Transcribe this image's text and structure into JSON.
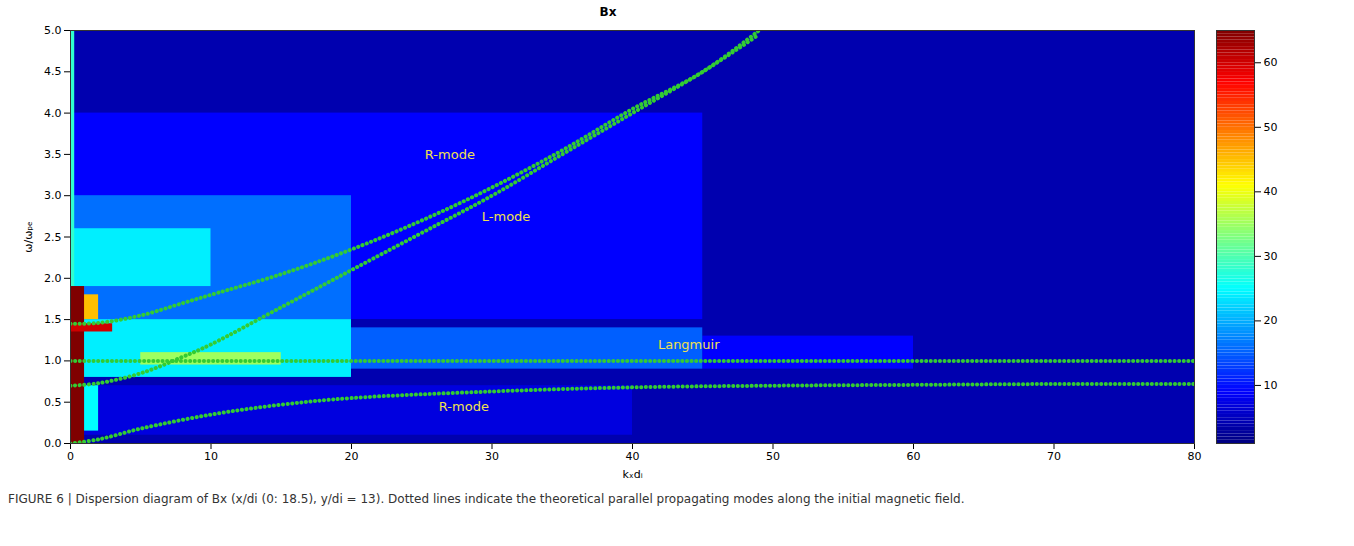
{
  "chart_data": {
    "type": "heatmap",
    "title": "Bx",
    "x_label": "kₓdᵢ",
    "y_label": "ω/ωₚₑ",
    "caption": "FIGURE 6 | Dispersion diagram of Bx (x/di (0: 18.5), y/di = 13). Dotted lines indicate the theoretical parallel propagating modes along the initial magnetic field.",
    "xlim": [
      0,
      80
    ],
    "xticks": [
      0,
      10,
      20,
      30,
      40,
      50,
      60,
      70,
      80
    ],
    "ylim": [
      0,
      5
    ],
    "yticks": [
      0,
      0.5,
      1,
      1.5,
      2,
      2.5,
      3,
      3.5,
      4,
      4.5,
      5
    ],
    "grid": false,
    "colorbar_range": [
      1,
      65
    ],
    "colorbar_ticks": [
      10,
      20,
      30,
      40,
      50,
      60
    ],
    "cells": [
      {
        "x1": 0,
        "x2": 80,
        "y1": 0,
        "y2": 5,
        "value": 4
      },
      {
        "x1": 0,
        "x2": 45,
        "y1": 1.5,
        "y2": 4,
        "value": 9
      },
      {
        "x1": 0,
        "x2": 20,
        "y1": 1.5,
        "y2": 3,
        "value": 16
      },
      {
        "x1": 0,
        "x2": 10,
        "y1": 1.9,
        "y2": 2.6,
        "value": 24
      },
      {
        "x1": 0,
        "x2": 40,
        "y1": 0.1,
        "y2": 0.7,
        "value": 7
      },
      {
        "x1": 45,
        "x2": 60,
        "y1": 0.9,
        "y2": 1.3,
        "value": 9
      },
      {
        "x1": 20,
        "x2": 45,
        "y1": 0.9,
        "y2": 1.4,
        "value": 15
      },
      {
        "x1": 0,
        "x2": 20,
        "y1": 0.8,
        "y2": 1.5,
        "value": 24
      },
      {
        "x1": 5,
        "x2": 15,
        "y1": 0.95,
        "y2": 1.1,
        "value": 35
      },
      {
        "x1": 0.3,
        "x2": 2,
        "y1": 1.5,
        "y2": 1.8,
        "value": 45
      },
      {
        "x1": 1,
        "x2": 2,
        "y1": 0.15,
        "y2": 0.7,
        "value": 25
      },
      {
        "x1": 0,
        "x2": 0.3,
        "y1": 1.9,
        "y2": 5,
        "value": 28
      },
      {
        "x1": 0,
        "x2": 1,
        "y1": 0,
        "y2": 1.9,
        "value": 65
      },
      {
        "x1": 0,
        "x2": 3,
        "y1": 1.35,
        "y2": 1.45,
        "value": 60
      }
    ],
    "series": [
      {
        "name": "R-mode",
        "color": "#33cc33",
        "marker": "dot",
        "line_style": "dotted",
        "x": [
          0,
          2,
          5,
          8,
          10,
          15,
          20,
          25,
          30,
          35,
          40,
          45,
          49
        ],
        "values": [
          1.45,
          1.46,
          1.55,
          1.7,
          1.8,
          2.05,
          2.35,
          2.7,
          3.1,
          3.55,
          4.05,
          4.5,
          5
        ]
      },
      {
        "name": "L-mode",
        "color": "#33cc33",
        "marker": "dot",
        "line_style": "dotted",
        "x": [
          0,
          2,
          5,
          8,
          10,
          15,
          20,
          25,
          30,
          35,
          40,
          45,
          49
        ],
        "values": [
          0.7,
          0.73,
          0.85,
          1.05,
          1.2,
          1.65,
          2.1,
          2.55,
          3,
          3.5,
          4,
          4.5,
          4.95
        ]
      },
      {
        "name": "Langmuir",
        "color": "#33cc33",
        "marker": "dot",
        "line_style": "dotted",
        "x": [
          0,
          80
        ],
        "values": [
          1,
          1
        ]
      },
      {
        "name": "R-mode",
        "color": "#33cc33",
        "marker": "dot",
        "line_style": "dotted",
        "x": [
          0,
          2,
          5,
          10,
          15,
          20,
          30,
          40,
          50,
          60,
          70,
          80
        ],
        "values": [
          0,
          0.05,
          0.18,
          0.35,
          0.47,
          0.55,
          0.63,
          0.68,
          0.7,
          0.71,
          0.72,
          0.72
        ]
      }
    ],
    "annotations": [
      {
        "text": "R-mode",
        "x": 27,
        "y": 3.5
      },
      {
        "text": "L-mode",
        "x": 31,
        "y": 2.75
      },
      {
        "text": "Langmuir",
        "x": 44,
        "y": 1.2
      },
      {
        "text": "R-mode",
        "x": 28,
        "y": 0.45
      }
    ]
  }
}
